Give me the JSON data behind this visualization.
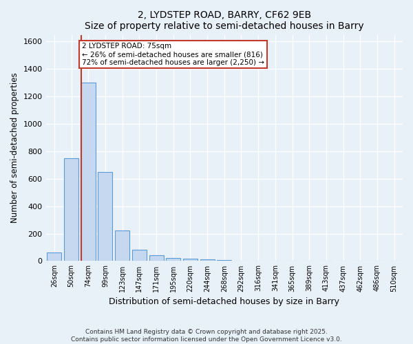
{
  "title1": "2, LYDSTEP ROAD, BARRY, CF62 9EB",
  "title2": "Size of property relative to semi-detached houses in Barry",
  "xlabel": "Distribution of semi-detached houses by size in Barry",
  "ylabel": "Number of semi-detached properties",
  "categories": [
    "26sqm",
    "50sqm",
    "74sqm",
    "99sqm",
    "123sqm",
    "147sqm",
    "171sqm",
    "195sqm",
    "220sqm",
    "244sqm",
    "268sqm",
    "292sqm",
    "316sqm",
    "341sqm",
    "365sqm",
    "389sqm",
    "413sqm",
    "437sqm",
    "462sqm",
    "486sqm",
    "510sqm"
  ],
  "values": [
    60,
    750,
    1300,
    650,
    225,
    80,
    40,
    20,
    15,
    10,
    5,
    2,
    0,
    0,
    0,
    0,
    0,
    0,
    0,
    0,
    0
  ],
  "bar_color": "#c5d8ef",
  "bar_edge_color": "#5b9bd5",
  "background_color": "#e8f0f8",
  "grid_color": "#ffffff",
  "vline_color": "#c0392b",
  "annotation_text": "2 LYDSTEP ROAD: 75sqm\n← 26% of semi-detached houses are smaller (816)\n72% of semi-detached houses are larger (2,250) →",
  "annotation_box_color": "#ffffff",
  "annotation_box_edge": "#c0392b",
  "ylim": [
    0,
    1650
  ],
  "yticks": [
    0,
    200,
    400,
    600,
    800,
    1000,
    1200,
    1400,
    1600
  ],
  "footer1": "Contains HM Land Registry data © Crown copyright and database right 2025.",
  "footer2": "Contains public sector information licensed under the Open Government Licence v3.0."
}
